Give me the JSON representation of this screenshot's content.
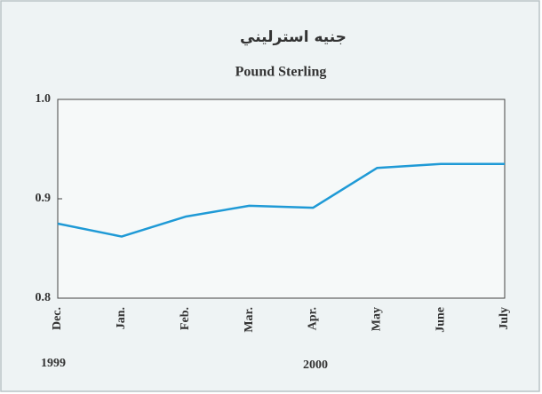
{
  "chart_data": {
    "type": "line",
    "title": "جنيه استرليني",
    "subtitle": "Pound Sterling",
    "categories": [
      "Dec.",
      "Jan.",
      "Feb.",
      "Mar.",
      "Apr.",
      "May",
      "June",
      "July"
    ],
    "series": [
      {
        "name": "Pound Sterling",
        "color": "#1f9ad6",
        "values": [
          0.875,
          0.862,
          0.882,
          0.893,
          0.891,
          0.931,
          0.935,
          0.935
        ]
      }
    ],
    "ylim": [
      0.8,
      1.0
    ],
    "yticks": [
      0.8,
      0.9,
      {
        "value": 1.0,
        "label": "1.0"
      }
    ],
    "grid": false,
    "annotations": [
      {
        "text": "1999"
      },
      {
        "text": "2000"
      }
    ]
  }
}
